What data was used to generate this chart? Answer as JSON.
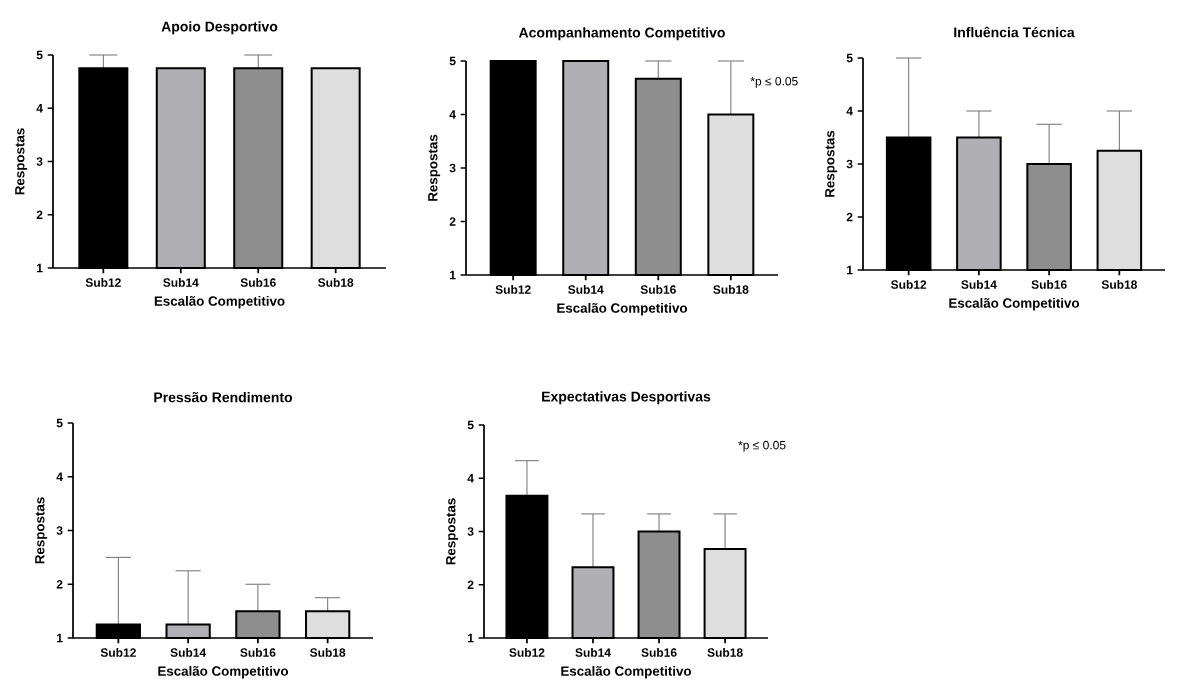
{
  "chart_data": [
    {
      "type": "bar",
      "title": "Apoio Desportivo",
      "xlabel": "Escalão Competitivo",
      "ylabel": "Respostas",
      "categories": [
        "Sub12",
        "Sub14",
        "Sub16",
        "Sub18"
      ],
      "values": [
        4.75,
        4.75,
        4.75,
        4.75
      ],
      "colors": [
        "#000000",
        "#b0b0b4",
        "#8e8e8e",
        "#dedede"
      ],
      "errors": [
        [
          4.75,
          5
        ],
        null,
        [
          4.75,
          5
        ],
        null
      ],
      "ylim": [
        1,
        5
      ],
      "yticks": [
        1,
        2,
        3,
        4,
        5
      ]
    },
    {
      "type": "bar",
      "title": "Acompanhamento Competitivo",
      "xlabel": "Escalão Competitivo",
      "ylabel": "Respostas",
      "categories": [
        "Sub12",
        "Sub14",
        "Sub16",
        "Sub18"
      ],
      "values": [
        5,
        5,
        4.67,
        4
      ],
      "colors": [
        "#000000",
        "#b0b0b4",
        "#8e8e8e",
        "#dedede"
      ],
      "errors": [
        null,
        null,
        [
          4.67,
          5
        ],
        [
          4,
          5
        ]
      ],
      "ylim": [
        1,
        5
      ],
      "yticks": [
        1,
        2,
        3,
        4,
        5
      ],
      "annotations": [
        "*p ≤ 0.05"
      ]
    },
    {
      "type": "bar",
      "title": "Influência Técnica",
      "xlabel": "Escalão Competitivo",
      "ylabel": "Respostas",
      "categories": [
        "Sub12",
        "Sub14",
        "Sub16",
        "Sub18"
      ],
      "values": [
        3.5,
        3.5,
        3,
        3.25
      ],
      "colors": [
        "#000000",
        "#b0b0b4",
        "#8e8e8e",
        "#dedede"
      ],
      "errors": [
        [
          3.5,
          5
        ],
        [
          3.5,
          4
        ],
        [
          3,
          3.75
        ],
        [
          3.25,
          4
        ]
      ],
      "ylim": [
        1,
        5
      ],
      "yticks": [
        1,
        2,
        3,
        4,
        5
      ]
    },
    {
      "type": "bar",
      "title": "Pressão Rendimento",
      "xlabel": "Escalão Competitivo",
      "ylabel": "Respostas",
      "categories": [
        "Sub12",
        "Sub14",
        "Sub16",
        "Sub18"
      ],
      "values": [
        1.25,
        1.25,
        1.5,
        1.5
      ],
      "colors": [
        "#000000",
        "#b0b0b4",
        "#8e8e8e",
        "#dedede"
      ],
      "errors": [
        [
          1.25,
          2.5
        ],
        [
          1.25,
          2.25
        ],
        [
          1.5,
          2
        ],
        [
          1.5,
          1.75
        ]
      ],
      "ylim": [
        1,
        5
      ],
      "yticks": [
        1,
        2,
        3,
        4,
        5
      ]
    },
    {
      "type": "bar",
      "title": "Expectativas Desportivas",
      "xlabel": "Escalão Competitivo",
      "ylabel": "Respostas",
      "categories": [
        "Sub12",
        "Sub14",
        "Sub16",
        "Sub18"
      ],
      "values": [
        3.67,
        2.33,
        3,
        2.67
      ],
      "colors": [
        "#000000",
        "#b0b0b4",
        "#8e8e8e",
        "#dedede"
      ],
      "errors": [
        [
          3.67,
          4.33
        ],
        [
          2.33,
          3.33
        ],
        [
          3,
          3.33
        ],
        [
          2.67,
          3.33
        ]
      ],
      "ylim": [
        1,
        5
      ],
      "yticks": [
        1,
        2,
        3,
        4,
        5
      ],
      "annotations": [
        "*p ≤ 0.05"
      ]
    }
  ]
}
